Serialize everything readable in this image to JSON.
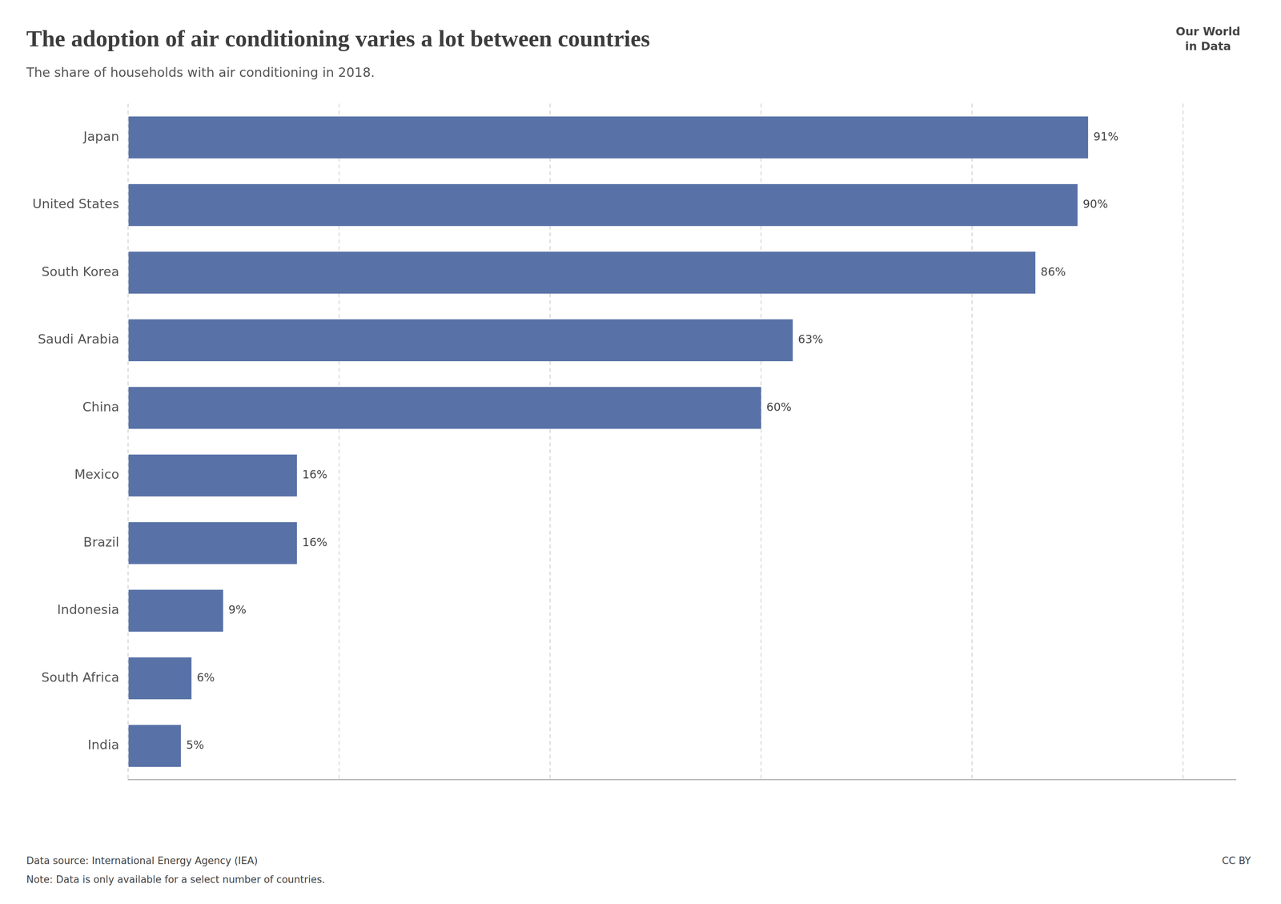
{
  "chart_data": {
    "type": "bar",
    "orientation": "horizontal",
    "title": "The adoption of air conditioning varies a lot between countries",
    "subtitle": "The share of households with air conditioning in 2018.",
    "categories": [
      "Japan",
      "United States",
      "South Korea",
      "Saudi Arabia",
      "China",
      "Mexico",
      "Brazil",
      "Indonesia",
      "South Africa",
      "India"
    ],
    "values": [
      91,
      90,
      86,
      63,
      60,
      16,
      16,
      9,
      6,
      5
    ],
    "value_labels": [
      "91%",
      "90%",
      "86%",
      "63%",
      "60%",
      "16%",
      "16%",
      "9%",
      "6%",
      "5%"
    ],
    "color": "#5872a7",
    "xlim": [
      0,
      105
    ],
    "xticks": [
      0,
      20,
      40,
      60,
      80,
      100
    ],
    "grid": true,
    "data_labels": true,
    "tick_labels": "y",
    "annotations": [
      "Data source: International Energy Agency (IEA)",
      "Note: Data is only available for a select number of countries.",
      "CC BY",
      "Our World\nin Data"
    ]
  }
}
